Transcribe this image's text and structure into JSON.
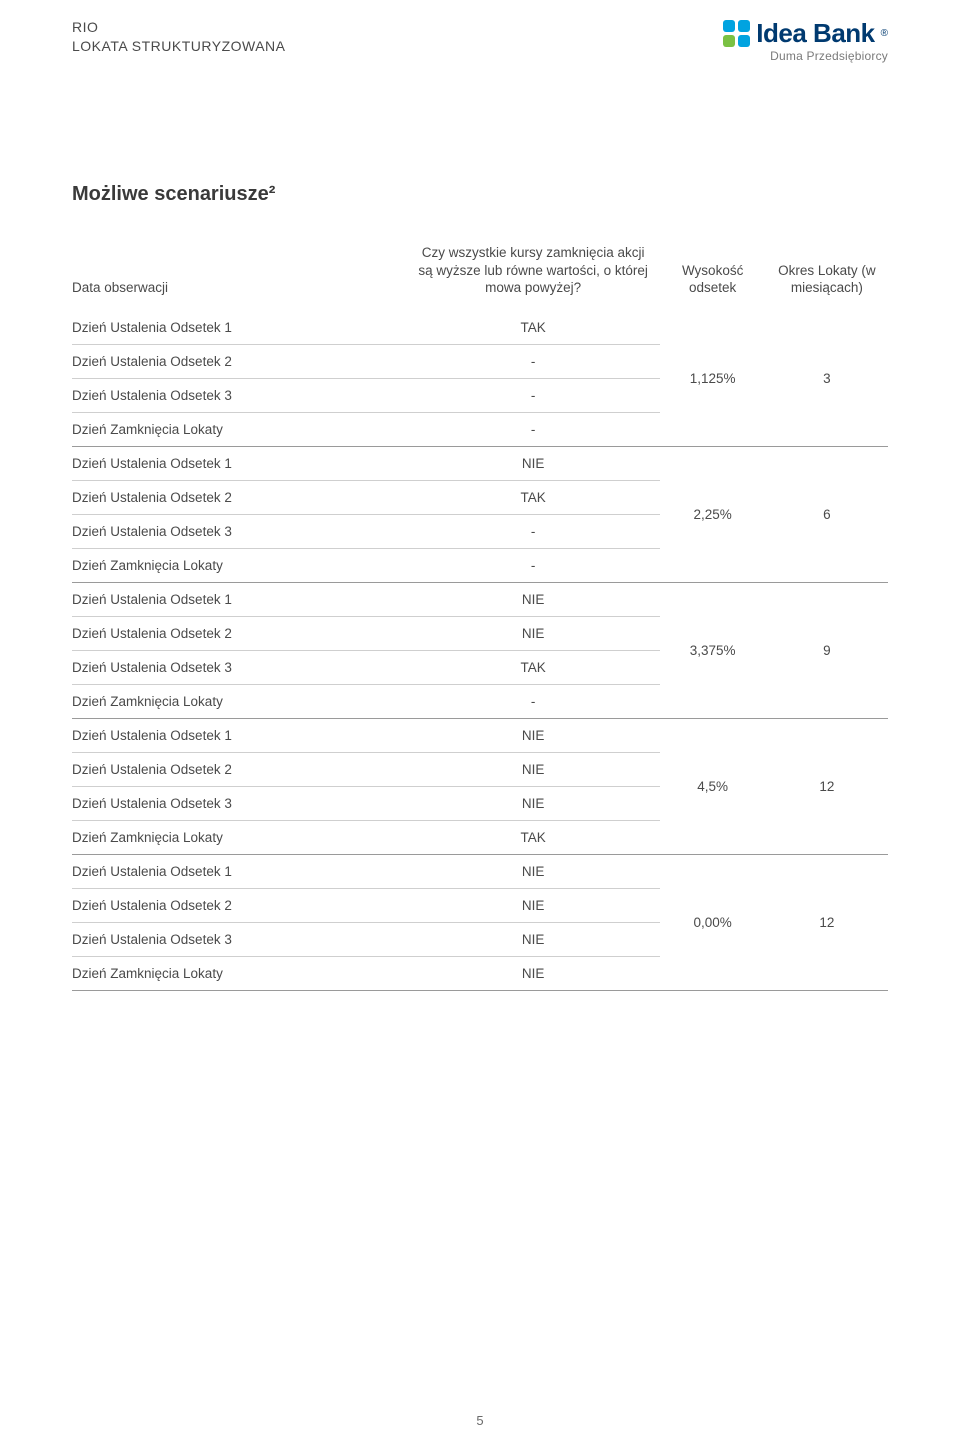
{
  "header": {
    "product_line1": "RIO",
    "product_line2": "LOKATA STRUKTURYZOWANA",
    "logo_text": "Idea Bank",
    "tagline": "Duma Przedsiębiorcy"
  },
  "section_title": "Możliwe scenariusze²",
  "table": {
    "col_headers": {
      "c1": "Data obserwacji",
      "c2": "Czy wszystkie kursy zamknięcia akcji są wyższe lub równe wartości, o której mowa powyżej?",
      "c3": "Wysokość odsetek",
      "c4": "Okres Lokaty (w miesiącach)"
    },
    "groups": [
      {
        "rate": "1,125%",
        "months": "3",
        "rows": [
          {
            "label": "Dzień Ustalenia Odsetek 1",
            "value": "TAK"
          },
          {
            "label": "Dzień Ustalenia Odsetek 2",
            "value": "-"
          },
          {
            "label": "Dzień Ustalenia Odsetek 3",
            "value": "-"
          },
          {
            "label": "Dzień Zamknięcia Lokaty",
            "value": "-"
          }
        ]
      },
      {
        "rate": "2,25%",
        "months": "6",
        "rows": [
          {
            "label": "Dzień Ustalenia Odsetek 1",
            "value": "NIE"
          },
          {
            "label": "Dzień Ustalenia Odsetek 2",
            "value": "TAK"
          },
          {
            "label": "Dzień Ustalenia Odsetek 3",
            "value": "-"
          },
          {
            "label": "Dzień Zamknięcia Lokaty",
            "value": "-"
          }
        ]
      },
      {
        "rate": "3,375%",
        "months": "9",
        "rows": [
          {
            "label": "Dzień Ustalenia Odsetek 1",
            "value": "NIE"
          },
          {
            "label": "Dzień Ustalenia Odsetek 2",
            "value": "NIE"
          },
          {
            "label": "Dzień Ustalenia Odsetek 3",
            "value": "TAK"
          },
          {
            "label": "Dzień Zamknięcia Lokaty",
            "value": "-"
          }
        ]
      },
      {
        "rate": "4,5%",
        "months": "12",
        "rows": [
          {
            "label": "Dzień Ustalenia Odsetek 1",
            "value": "NIE"
          },
          {
            "label": "Dzień Ustalenia Odsetek 2",
            "value": "NIE"
          },
          {
            "label": "Dzień Ustalenia Odsetek 3",
            "value": "NIE"
          },
          {
            "label": "Dzień Zamknięcia Lokaty",
            "value": "TAK"
          }
        ]
      },
      {
        "rate": "0,00%",
        "months": "12",
        "rows": [
          {
            "label": "Dzień Ustalenia Odsetek 1",
            "value": "NIE"
          },
          {
            "label": "Dzień Ustalenia Odsetek 2",
            "value": "NIE"
          },
          {
            "label": "Dzień Ustalenia Odsetek 3",
            "value": "NIE"
          },
          {
            "label": "Dzień Zamknięcia Lokaty",
            "value": "NIE"
          }
        ]
      }
    ]
  },
  "page_number": "5",
  "colors": {
    "text": "#4a4a4a",
    "heading": "#3a3a3a",
    "rule_light": "#cfcfcf",
    "rule_dark": "#9a9a9a",
    "logo_navy": "#003a70",
    "logo_cyan": "#00a3e0",
    "logo_green": "#7ac143",
    "tagline": "#7a7a7a",
    "background": "#ffffff"
  }
}
